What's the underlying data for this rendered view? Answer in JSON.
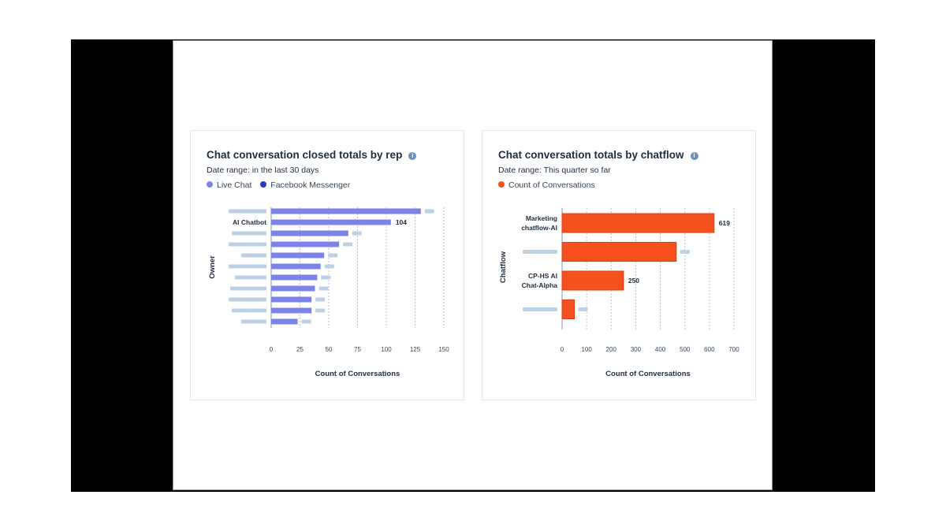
{
  "colors": {
    "live_chat": "#7b84e6",
    "facebook": "#2a3bb5",
    "count_conversations": "#f4511e",
    "placeholder": "#bcd1e3",
    "grid": "#b9c4cf"
  },
  "icons": {
    "info": "info-icon"
  },
  "left_card": {
    "title": "Chat conversation closed totals by rep",
    "date_range": "Date range: in the last 30 days",
    "legend": [
      {
        "label": "Live Chat",
        "color": "#7b84e6"
      },
      {
        "label": "Facebook Messenger",
        "color": "#2a3bb5"
      }
    ]
  },
  "right_card": {
    "title": "Chat conversation totals by chatflow",
    "date_range": "Date range: This quarter so far",
    "legend": [
      {
        "label": "Count of Conversations",
        "color": "#f4511e"
      }
    ]
  },
  "chart_data": [
    {
      "type": "bar",
      "orientation": "horizontal",
      "title": "Chat conversation closed totals by rep",
      "xlabel": "Count of Conversations",
      "ylabel": "Owner",
      "xlim": [
        0,
        150
      ],
      "xticks": [
        0,
        25,
        50,
        75,
        100,
        125,
        150
      ],
      "grid": true,
      "categories": [
        "",
        "AI Chatbot",
        "",
        "",
        "",
        "",
        "",
        "",
        "",
        "",
        ""
      ],
      "series": [
        {
          "name": "Live Chat",
          "values": [
            130,
            104,
            67,
            59,
            46,
            43,
            40,
            38,
            35,
            35,
            23
          ]
        }
      ],
      "data_labels": {
        "1": "104"
      }
    },
    {
      "type": "bar",
      "orientation": "horizontal",
      "title": "Chat conversation totals by chatflow",
      "xlabel": "Count of Conversations",
      "ylabel": "Chatflow",
      "xlim": [
        0,
        700
      ],
      "xticks": [
        0,
        100,
        200,
        300,
        400,
        500,
        600,
        700
      ],
      "grid": true,
      "categories": [
        "Marketing chatflow-AI",
        "",
        "CP-HS AI Chat-Alpha",
        ""
      ],
      "series": [
        {
          "name": "Count of Conversations",
          "values": [
            619,
            465,
            250,
            50
          ]
        }
      ],
      "data_labels": {
        "0": "619",
        "2": "250"
      }
    }
  ]
}
